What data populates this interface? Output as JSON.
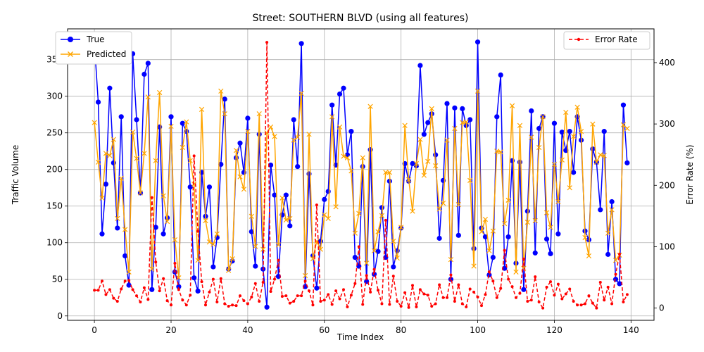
{
  "chart_data": {
    "type": "line",
    "title": "Street: SOUTHERN BLVD (using all features)",
    "xlabel": "Time Index",
    "ylabel": "Traffic Volume",
    "y2label": "Error Rate (%)",
    "xlim": [
      -7,
      146
    ],
    "ylim": [
      -6,
      392
    ],
    "y2lim": [
      -20,
      455
    ],
    "xticks": [
      0,
      20,
      40,
      60,
      80,
      100,
      120,
      140
    ],
    "yticks": [
      0,
      50,
      100,
      150,
      200,
      250,
      300,
      350
    ],
    "y2ticks": [
      0,
      100,
      200,
      300,
      400
    ],
    "grid": true,
    "legend_left": "upper-left",
    "legend_right": "upper-right",
    "colors": {
      "true": "#0000ff",
      "predicted": "#ffa500",
      "error": "#ff0000"
    },
    "series": [
      {
        "name": "True",
        "axis": "left",
        "marker": "circle",
        "values": [
          372,
          292,
          112,
          180,
          311,
          209,
          120,
          272,
          82,
          42,
          358,
          268,
          168,
          330,
          345,
          36,
          121,
          258,
          112,
          134,
          272,
          60,
          40,
          263,
          252,
          176,
          52,
          34,
          196,
          136,
          176,
          67,
          107,
          207,
          296,
          64,
          75,
          216,
          236,
          196,
          270,
          115,
          68,
          248,
          64,
          12,
          206,
          165,
          54,
          138,
          165,
          123,
          268,
          204,
          372,
          40,
          194,
          82,
          38,
          102,
          159,
          170,
          288,
          206,
          303,
          311,
          220,
          252,
          80,
          68,
          204,
          47,
          227,
          57,
          88,
          148,
          80,
          184,
          67,
          89,
          120,
          208,
          184,
          208,
          205,
          342,
          248,
          264,
          276,
          220,
          106,
          185,
          290,
          50,
          284,
          110,
          283,
          260,
          268,
          92,
          374,
          120,
          108,
          56,
          80,
          272,
          329,
          65,
          108,
          212,
          72,
          210,
          36,
          143,
          280,
          86,
          256,
          272,
          105,
          85,
          263,
          112,
          251,
          226,
          252,
          196,
          272,
          240,
          116,
          104,
          228,
          210,
          145,
          252,
          84,
          156,
          50,
          44,
          288,
          209
        ]
      },
      {
        "name": "Predicted",
        "axis": "left",
        "marker": "x",
        "values": [
          264,
          210,
          161,
          222,
          219,
          241,
          133,
          188,
          118,
          60,
          251,
          215,
          168,
          222,
          299,
          64,
          212,
          305,
          164,
          129,
          259,
          104,
          52,
          230,
          265,
          212,
          180,
          76,
          282,
          130,
          101,
          98,
          112,
          307,
          276,
          62,
          78,
          226,
          190,
          173,
          252,
          136,
          95,
          276,
          91,
          250,
          258,
          245,
          97,
          161,
          131,
          133,
          240,
          244,
          304,
          55,
          248,
          78,
          102,
          91,
          138,
          133,
          272,
          149,
          258,
          218,
          216,
          198,
          113,
          140,
          216,
          72,
          286,
          89,
          115,
          137,
          196,
          196,
          102,
          79,
          121,
          260,
          186,
          143,
          208,
          241,
          192,
          211,
          283,
          205,
          146,
          154,
          240,
          77,
          256,
          152,
          264,
          265,
          185,
          68,
          307,
          115,
          132,
          89,
          116,
          225,
          224,
          126,
          158,
          287,
          60,
          260,
          65,
          128,
          244,
          130,
          230,
          272,
          141,
          121,
          207,
          156,
          213,
          278,
          175,
          245,
          285,
          252,
          107,
          82,
          262,
          210,
          220,
          219,
          113,
          145,
          76,
          83,
          261,
          256
        ]
      },
      {
        "name": "Error Rate",
        "axis": "right",
        "marker": "dot",
        "values": [
          29,
          29,
          44,
          22,
          30,
          16,
          11,
          31,
          44,
          45,
          30,
          20,
          10,
          33,
          14,
          180,
          75,
          28,
          48,
          12,
          5,
          73,
          30,
          13,
          5,
          21,
          248,
          125,
          43,
          5,
          26,
          47,
          10,
          48,
          7,
          3,
          5,
          4,
          20,
          12,
          7,
          18,
          40,
          11,
          42,
          433,
          27,
          47,
          78,
          19,
          20,
          8,
          11,
          20,
          20,
          44,
          28,
          5,
          168,
          11,
          13,
          22,
          6,
          28,
          15,
          30,
          2,
          21,
          40,
          100,
          6,
          53,
          26,
          63,
          29,
          7,
          143,
          6,
          52,
          11,
          3,
          25,
          1,
          37,
          2,
          30,
          23,
          21,
          3,
          7,
          38,
          17,
          17,
          54,
          11,
          38,
          7,
          2,
          31,
          26,
          18,
          4,
          22,
          59,
          44,
          17,
          32,
          94,
          47,
          35,
          17,
          24,
          80,
          11,
          13,
          51,
          10,
          0,
          34,
          43,
          21,
          39,
          15,
          23,
          31,
          11,
          5,
          5,
          7,
          20,
          8,
          0,
          42,
          13,
          34,
          7,
          55,
          88,
          10,
          22
        ]
      }
    ]
  }
}
